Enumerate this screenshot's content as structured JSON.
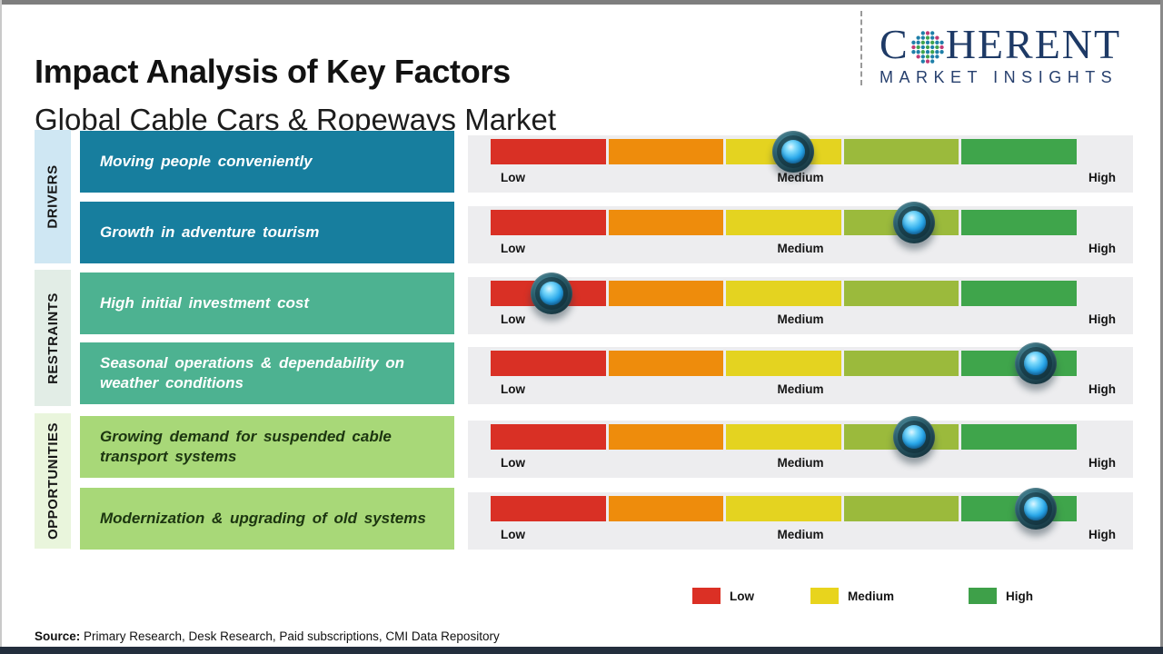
{
  "header": {
    "title": "Impact Analysis of Key Factors",
    "subtitle": "Global Cable Cars & Ropeways Market"
  },
  "logo": {
    "word_start": "C",
    "word_end": "HERENT",
    "tagline": "MARKET INSIGHTS",
    "brand_color": "#1e3a66",
    "dot_colors": [
      "#3fa44e",
      "#1f7fa8",
      "#c03b74"
    ]
  },
  "scale_labels": {
    "low": "Low",
    "medium": "Medium",
    "high": "High"
  },
  "gauge": {
    "segment_colors": [
      "#d93025",
      "#ee8c0c",
      "#e4d320",
      "#9bba3c",
      "#3fa54b"
    ],
    "panel_bg": "#ededef"
  },
  "groups": [
    {
      "name": "DRIVERS",
      "label_bg": "#cfe7f3",
      "factor_bg": "#177e9e",
      "factor_text_color": "#ffffff",
      "factors": [
        {
          "text": "Moving people conveniently",
          "impact": "Medium",
          "position_pct": 51.6
        },
        {
          "text": "Growth in adventure tourism",
          "impact": "Medium-High",
          "position_pct": 72.2
        }
      ]
    },
    {
      "name": "RESTRAINTS",
      "label_bg": "#e2ede6",
      "factor_bg": "#4db291",
      "factor_text_color": "#ffffff",
      "factors": [
        {
          "text": "High initial investment cost",
          "impact": "Low",
          "position_pct": 10.4
        },
        {
          "text": "Seasonal operations & dependability on weather conditions",
          "impact": "High",
          "position_pct": 93
        }
      ]
    },
    {
      "name": "OPPORTUNITIES",
      "label_bg": "#e9f5dc",
      "factor_bg": "#a8d878",
      "factor_text_color": "#1c3510",
      "factors": [
        {
          "text": "Growing demand for suspended cable transport systems",
          "impact": "Medium-High",
          "position_pct": 72.2
        },
        {
          "text": "Modernization & upgrading of old systems",
          "impact": "High",
          "position_pct": 93
        }
      ]
    }
  ],
  "legend": {
    "items": [
      {
        "label": "Low",
        "color": "#db3025"
      },
      {
        "label": "Medium",
        "color": "#e8d41d"
      },
      {
        "label": "High",
        "color": "#3ea049"
      }
    ]
  },
  "source": {
    "label": "Source:",
    "text": "Primary Research, Desk Research, Paid subscriptions, CMI Data Repository"
  },
  "chart_data": {
    "type": "bar",
    "title": "Impact Analysis of Key Factors",
    "subtitle": "Global Cable Cars & Ropeways Market",
    "scale": [
      "Low",
      "Medium",
      "High"
    ],
    "axis_note": "Each factor rated on a Low-Medium-High impact scale; position_pct is marker position from 0 (Low) to 100 (High)",
    "series": [
      {
        "category": "Drivers",
        "factor": "Moving people conveniently",
        "impact": "Medium",
        "position_pct": 51.6
      },
      {
        "category": "Drivers",
        "factor": "Growth in adventure tourism",
        "impact": "Medium-High",
        "position_pct": 72.2
      },
      {
        "category": "Restraints",
        "factor": "High initial investment cost",
        "impact": "Low",
        "position_pct": 10.4
      },
      {
        "category": "Restraints",
        "factor": "Seasonal operations & dependability on weather conditions",
        "impact": "High",
        "position_pct": 93
      },
      {
        "category": "Opportunities",
        "factor": "Growing demand for suspended cable transport systems",
        "impact": "Medium-High",
        "position_pct": 72.2
      },
      {
        "category": "Opportunities",
        "factor": "Modernization & upgrading of old systems",
        "impact": "High",
        "position_pct": 93
      }
    ],
    "legend_position": "bottom-right",
    "grid": false
  }
}
